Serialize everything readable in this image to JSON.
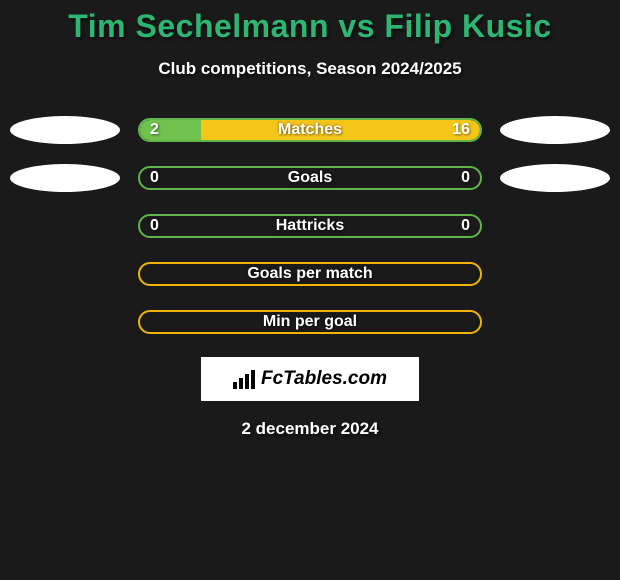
{
  "title": "Tim Sechelmann vs Filip Kusic",
  "subtitle": "Club competitions, Season 2024/2025",
  "date": "2 december 2024",
  "logo": "FcTables.com",
  "colors": {
    "title": "#2bb673",
    "border_green": "#5fb648",
    "fill_green": "#6fc24e",
    "border_yellow": "#f0b400",
    "fill_yellow": "#f5c518",
    "background": "#1a1a1a"
  },
  "rows": [
    {
      "label": "Matches",
      "left_val": "2",
      "right_val": "16",
      "left_pct": 18,
      "right_pct": 82,
      "border_color": "#5fb648",
      "left_fill": "#6fc24e",
      "right_fill": "#f5c518",
      "show_left_ellipse": true,
      "show_right_ellipse": true,
      "show_vals": true
    },
    {
      "label": "Goals",
      "left_val": "0",
      "right_val": "0",
      "left_pct": 0,
      "right_pct": 0,
      "border_color": "#5fb648",
      "left_fill": "#6fc24e",
      "right_fill": "#f5c518",
      "show_left_ellipse": true,
      "show_right_ellipse": true,
      "show_vals": true
    },
    {
      "label": "Hattricks",
      "left_val": "0",
      "right_val": "0",
      "left_pct": 0,
      "right_pct": 0,
      "border_color": "#5fb648",
      "left_fill": "#6fc24e",
      "right_fill": "#f5c518",
      "show_left_ellipse": false,
      "show_right_ellipse": false,
      "show_vals": true
    },
    {
      "label": "Goals per match",
      "left_val": "",
      "right_val": "",
      "left_pct": 0,
      "right_pct": 0,
      "border_color": "#f0b400",
      "left_fill": "#6fc24e",
      "right_fill": "#f5c518",
      "show_left_ellipse": false,
      "show_right_ellipse": false,
      "show_vals": false
    },
    {
      "label": "Min per goal",
      "left_val": "",
      "right_val": "",
      "left_pct": 0,
      "right_pct": 0,
      "border_color": "#f0b400",
      "left_fill": "#6fc24e",
      "right_fill": "#f5c518",
      "show_left_ellipse": false,
      "show_right_ellipse": false,
      "show_vals": false
    }
  ]
}
